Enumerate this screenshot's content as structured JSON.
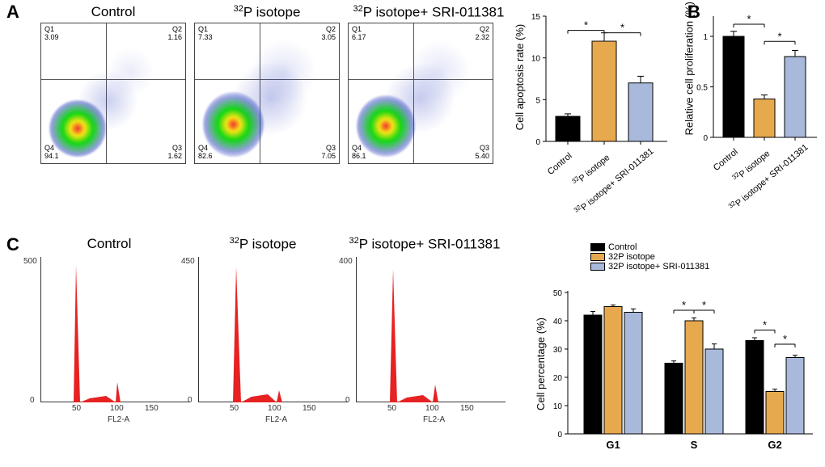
{
  "panelA": {
    "label": "A",
    "conditions": [
      {
        "title": "Control",
        "q1": "Q1\n3.09",
        "q2": "Q2\n1.16",
        "q3": "Q3\n1.62",
        "q4": "Q4\n94.1"
      },
      {
        "title": "³²P isotope",
        "q1": "Q1\n7.33",
        "q2": "Q2\n3.05",
        "q3": "Q3\n7.05",
        "q4": "Q4\n82.6"
      },
      {
        "title": "³²P isotope+ SRI-011381",
        "q1": "Q1\n6.17",
        "q2": "Q2\n2.32",
        "q3": "Q3\n5.40",
        "q4": "Q4\n86.1"
      }
    ],
    "barchart": {
      "ylabel": "Cell apoptosis rate (%)",
      "ymax": 15,
      "ytick_step": 5,
      "categories": [
        "Control",
        "³²P isotope",
        "³²P isotope+ SRI-011381"
      ],
      "values": [
        3.0,
        12.0,
        7.0
      ],
      "errors": [
        0.3,
        1.0,
        0.8
      ],
      "colors": [
        "#000000",
        "#e7a94e",
        "#a9b9db"
      ],
      "sig": [
        {
          "from": 0,
          "to": 1,
          "y": 13.3
        },
        {
          "from": 1,
          "to": 2,
          "y": 13.0
        }
      ]
    }
  },
  "panelB": {
    "label": "B",
    "barchart": {
      "ylabel": "Relative cell proliferation (%)",
      "ymax": 1.2,
      "yticks": [
        0,
        0.5,
        1.0
      ],
      "categories": [
        "Control",
        "³²P isotope",
        "³²P isotope+ SRI-011381"
      ],
      "values": [
        1.0,
        0.38,
        0.8
      ],
      "errors": [
        0.05,
        0.04,
        0.06
      ],
      "colors": [
        "#000000",
        "#e7a94e",
        "#a9b9db"
      ],
      "sig": [
        {
          "from": 0,
          "to": 1,
          "y": 1.12
        },
        {
          "from": 1,
          "to": 2,
          "y": 0.95
        }
      ]
    }
  },
  "panelC": {
    "label": "C",
    "conditions": [
      "Control",
      "³²P isotope",
      "³²P isotope+ SRI-011381"
    ],
    "xaxis": "FL2-A",
    "histograms": [
      {
        "ymax": 500,
        "g1_h": 500,
        "g2_h": 60,
        "g1_x": 45,
        "g2_x": 95
      },
      {
        "ymax": 450,
        "g1_h": 450,
        "g2_h": 30,
        "g1_x": 48,
        "g2_x": 100
      },
      {
        "ymax": 400,
        "g1_h": 400,
        "g2_h": 55,
        "g1_x": 46,
        "g2_x": 98
      }
    ],
    "barchart": {
      "ylabel": "Cell percentage (%)",
      "ymax": 50,
      "ytick_step": 10,
      "xgroups": [
        "G1",
        "S",
        "G2"
      ],
      "series": [
        {
          "name": "Control",
          "color": "#000000",
          "values": [
            42,
            25,
            33
          ],
          "errors": [
            1.3,
            0.8,
            1.0
          ]
        },
        {
          "name": "32P isotope",
          "color": "#e7a94e",
          "values": [
            45,
            40,
            15
          ],
          "errors": [
            0.6,
            1.0,
            0.8
          ]
        },
        {
          "name": "32P isotope+ SRI-011381",
          "color": "#a9b9db",
          "values": [
            43,
            30,
            27
          ],
          "errors": [
            1.2,
            1.8,
            0.8
          ]
        }
      ],
      "sig": [
        {
          "group": 1,
          "from": 0,
          "to": 1,
          "y": 42
        },
        {
          "group": 1,
          "from": 1,
          "to": 2,
          "y": 42
        },
        {
          "group": 2,
          "from": 0,
          "to": 1,
          "y": 35
        },
        {
          "group": 2,
          "from": 1,
          "to": 2,
          "y": 30
        }
      ]
    }
  },
  "colors": {
    "peak": "#e62222",
    "axis": "#333333",
    "scatter_main": "#12d812",
    "scatter_hot": "#f7e515",
    "scatter_red": "#f03030",
    "scatter_blue": "#2a3ec0"
  }
}
